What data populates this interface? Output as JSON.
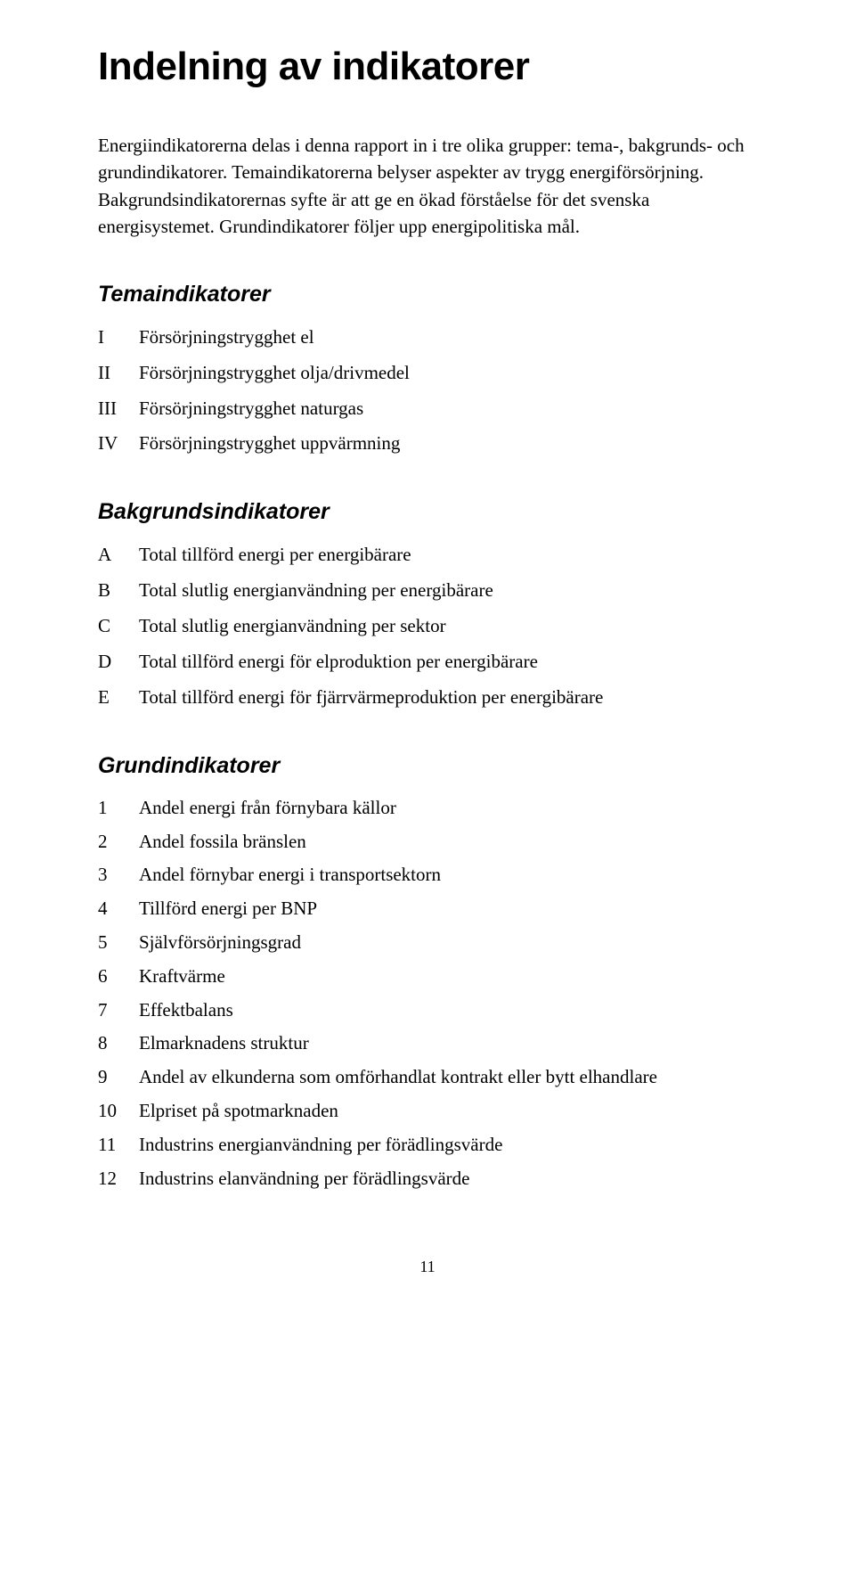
{
  "title": "Indelning av indikatorer",
  "intro": "Energiindikatorerna delas i denna rapport in i tre olika grupper: tema-, bakgrunds- och grundindikatorer. Temaindikatorerna belyser aspekter av trygg energiförsörjning. Bakgrundsindikatorernas syfte är att ge en ökad förståelse för det svenska energisystemet. Grundindikatorer följer upp energipolitiska mål.",
  "sections": {
    "tema": {
      "heading": "Temaindikatorer",
      "items": [
        {
          "label": "I",
          "text": "Försörjningstrygghet el"
        },
        {
          "label": "II",
          "text": "Försörjningstrygghet olja/drivmedel"
        },
        {
          "label": "III",
          "text": "Försörjningstrygghet naturgas"
        },
        {
          "label": "IV",
          "text": "Försörjningstrygghet uppvärmning"
        }
      ]
    },
    "bakgrund": {
      "heading": "Bakgrundsindikatorer",
      "items": [
        {
          "label": "A",
          "text": "Total tillförd energi per energibärare"
        },
        {
          "label": "B",
          "text": "Total slutlig energianvändning per energibärare"
        },
        {
          "label": "C",
          "text": "Total slutlig energianvändning per sektor"
        },
        {
          "label": "D",
          "text": "Total tillförd energi för elproduktion per energibärare"
        },
        {
          "label": "E",
          "text": "Total tillförd energi för fjärrvärmeproduktion per energibärare"
        }
      ]
    },
    "grund": {
      "heading": "Grundindikatorer",
      "items": [
        {
          "label": "1",
          "text": "Andel energi från förnybara källor"
        },
        {
          "label": "2",
          "text": "Andel fossila bränslen"
        },
        {
          "label": "3",
          "text": "Andel förnybar energi i transportsektorn"
        },
        {
          "label": "4",
          "text": "Tillförd energi per BNP"
        },
        {
          "label": "5",
          "text": "Självförsörjningsgrad"
        },
        {
          "label": "6",
          "text": "Kraftvärme"
        },
        {
          "label": "7",
          "text": "Effektbalans"
        },
        {
          "label": "8",
          "text": "Elmarknadens struktur"
        },
        {
          "label": "9",
          "text": "Andel av elkunderna som omförhandlat kontrakt eller bytt elhandlare"
        },
        {
          "label": "10",
          "text": "Elpriset på spotmarknaden"
        },
        {
          "label": "11",
          "text": "Industrins energianvändning per förädlingsvärde"
        },
        {
          "label": "12",
          "text": "Industrins elanvändning per förädlingsvärde"
        }
      ]
    }
  },
  "page_number": "11"
}
